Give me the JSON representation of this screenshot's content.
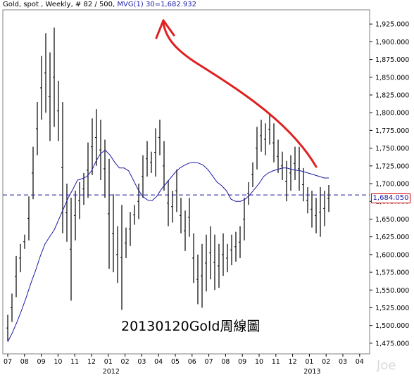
{
  "header": {
    "series_label": "Gold, spot , Weekly, # 82 / 500,",
    "mvg_label": "MVG(1) 30=1,682.932"
  },
  "price_tag": "1,684.050",
  "caption": "20130120Gold周線圖",
  "watermark": "Joe",
  "colors": {
    "bars": "#000000",
    "ma_line": "#1a1aa6",
    "ref_line": "#1a1aa6",
    "arrow": "#e02020",
    "tag_border": "#d00000"
  },
  "chart_data": {
    "type": "ohlc",
    "y_ticks": [
      "1,475.000",
      "1,500.000",
      "1,525.000",
      "1,550.000",
      "1,575.000",
      "1,600.000",
      "1,625.000",
      "1,650.000",
      "1,675.000",
      "1,700.000",
      "1,725.000",
      "1,750.000",
      "1,775.000",
      "1,800.000",
      "1,825.000",
      "1,850.000",
      "1,875.000",
      "1,900.000",
      "1,925.000"
    ],
    "ylim": [
      1460,
      1945
    ],
    "month_ticks": [
      "07",
      "08",
      "09",
      "10",
      "11",
      "12",
      "01",
      "02",
      "03",
      "04",
      "05",
      "06",
      "07",
      "08",
      "09",
      "10",
      "11",
      "12",
      "01",
      "02",
      "03",
      "04"
    ],
    "year_labels": [
      {
        "label": "2012",
        "month_index": 6
      },
      {
        "label": "2013",
        "month_index": 18
      }
    ],
    "x_span_months": 22,
    "current_price": 1684.05,
    "bars": [
      {
        "high": 1515,
        "low": 1478
      },
      {
        "high": 1545,
        "low": 1505
      },
      {
        "high": 1598,
        "low": 1540
      },
      {
        "high": 1615,
        "low": 1575
      },
      {
        "high": 1628,
        "low": 1608
      },
      {
        "high": 1682,
        "low": 1620
      },
      {
        "high": 1752,
        "low": 1678
      },
      {
        "high": 1815,
        "low": 1740
      },
      {
        "high": 1880,
        "low": 1790
      },
      {
        "high": 1912,
        "low": 1800
      },
      {
        "high": 1885,
        "low": 1760
      },
      {
        "high": 1920,
        "low": 1780
      },
      {
        "high": 1845,
        "low": 1760
      },
      {
        "high": 1815,
        "low": 1630
      },
      {
        "high": 1700,
        "low": 1618
      },
      {
        "high": 1680,
        "low": 1535
      },
      {
        "high": 1690,
        "low": 1620
      },
      {
        "high": 1702,
        "low": 1650
      },
      {
        "high": 1715,
        "low": 1670
      },
      {
        "high": 1758,
        "low": 1680
      },
      {
        "high": 1792,
        "low": 1712
      },
      {
        "high": 1805,
        "low": 1725
      },
      {
        "high": 1790,
        "low": 1705
      },
      {
        "high": 1762,
        "low": 1680
      },
      {
        "high": 1735,
        "low": 1580
      },
      {
        "high": 1685,
        "low": 1575
      },
      {
        "high": 1640,
        "low": 1560
      },
      {
        "high": 1670,
        "low": 1522
      },
      {
        "high": 1638,
        "low": 1595
      },
      {
        "high": 1660,
        "low": 1612
      },
      {
        "high": 1670,
        "low": 1642
      },
      {
        "high": 1700,
        "low": 1650
      },
      {
        "high": 1740,
        "low": 1680
      },
      {
        "high": 1760,
        "low": 1710
      },
      {
        "high": 1745,
        "low": 1715
      },
      {
        "high": 1778,
        "low": 1710
      },
      {
        "high": 1790,
        "low": 1740
      },
      {
        "high": 1760,
        "low": 1690
      },
      {
        "high": 1705,
        "low": 1640
      },
      {
        "high": 1690,
        "low": 1645
      },
      {
        "high": 1720,
        "low": 1660
      },
      {
        "high": 1680,
        "low": 1630
      },
      {
        "high": 1662,
        "low": 1605
      },
      {
        "high": 1680,
        "low": 1625
      },
      {
        "high": 1630,
        "low": 1560
      },
      {
        "high": 1600,
        "low": 1530
      },
      {
        "high": 1615,
        "low": 1525
      },
      {
        "high": 1628,
        "low": 1548
      },
      {
        "high": 1640,
        "low": 1565
      },
      {
        "high": 1628,
        "low": 1550
      },
      {
        "high": 1615,
        "low": 1553
      },
      {
        "high": 1630,
        "low": 1570
      },
      {
        "high": 1615,
        "low": 1575
      },
      {
        "high": 1628,
        "low": 1585
      },
      {
        "high": 1632,
        "low": 1590
      },
      {
        "high": 1640,
        "low": 1595
      },
      {
        "high": 1680,
        "low": 1620
      },
      {
        "high": 1702,
        "low": 1670
      },
      {
        "high": 1730,
        "low": 1695
      },
      {
        "high": 1780,
        "low": 1720
      },
      {
        "high": 1790,
        "low": 1745
      },
      {
        "high": 1785,
        "low": 1740
      },
      {
        "high": 1798,
        "low": 1755
      },
      {
        "high": 1785,
        "low": 1730
      },
      {
        "high": 1762,
        "low": 1715
      },
      {
        "high": 1745,
        "low": 1705
      },
      {
        "high": 1732,
        "low": 1675
      },
      {
        "high": 1740,
        "low": 1690
      },
      {
        "high": 1752,
        "low": 1705
      },
      {
        "high": 1752,
        "low": 1690
      },
      {
        "high": 1722,
        "low": 1675
      },
      {
        "high": 1695,
        "low": 1658
      },
      {
        "high": 1690,
        "low": 1638
      },
      {
        "high": 1680,
        "low": 1630
      },
      {
        "high": 1695,
        "low": 1625
      },
      {
        "high": 1690,
        "low": 1640
      },
      {
        "high": 1698,
        "low": 1660
      }
    ],
    "ma_values": [
      1477,
      1490,
      1505,
      1522,
      1540,
      1560,
      1578,
      1598,
      1615,
      1625,
      1635,
      1650,
      1665,
      1680,
      1692,
      1705,
      1707,
      1710,
      1718,
      1732,
      1743,
      1747,
      1740,
      1730,
      1722,
      1722,
      1718,
      1705,
      1692,
      1682,
      1677,
      1676,
      1682,
      1692,
      1700,
      1708,
      1716,
      1722,
      1726,
      1729,
      1730,
      1729,
      1726,
      1720,
      1711,
      1702,
      1697,
      1690,
      1678,
      1675,
      1675,
      1678,
      1684,
      1692,
      1700,
      1710,
      1715,
      1718,
      1720,
      1722,
      1722,
      1720,
      1719,
      1718,
      1716,
      1714,
      1712,
      1710,
      1708,
      1708
    ]
  }
}
